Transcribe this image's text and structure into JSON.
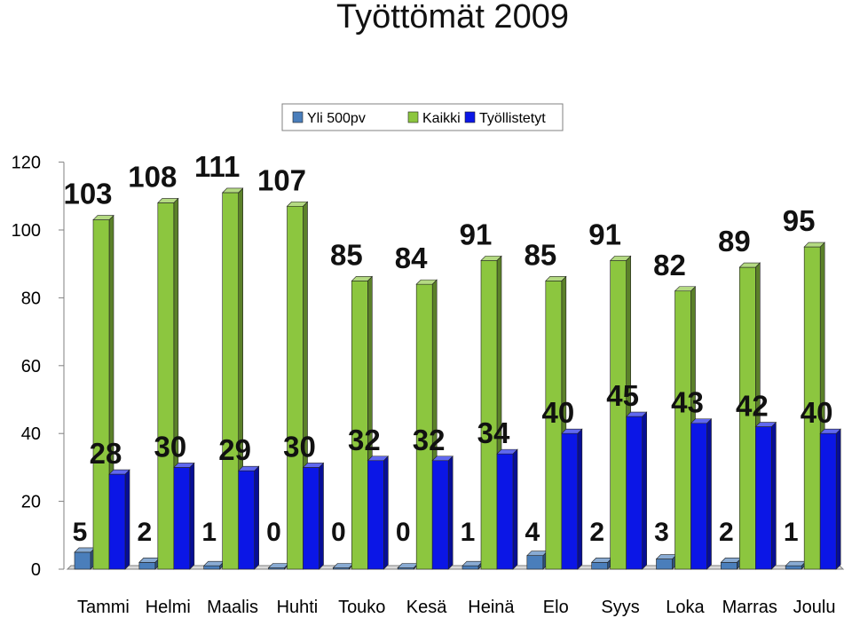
{
  "chart_data": {
    "type": "bar",
    "title": "Työttömät 2009",
    "categories": [
      "Tammi",
      "Helmi",
      "Maalis",
      "Huhti",
      "Touko",
      "Kesä",
      "Heinä",
      "Elo",
      "Syys",
      "Loka",
      "Marras",
      "Joulu"
    ],
    "series": [
      {
        "name": "Yli 500pv",
        "color": "#4a7ebb",
        "values": [
          5,
          2,
          1,
          0,
          0,
          0,
          1,
          4,
          2,
          3,
          2,
          1
        ]
      },
      {
        "name": "Kaikki",
        "color": "#8cc63f",
        "values": [
          103,
          108,
          111,
          107,
          85,
          84,
          91,
          85,
          91,
          82,
          89,
          95
        ]
      },
      {
        "name": "Työllistetyt",
        "color": "#0b16e6",
        "values": [
          28,
          30,
          29,
          30,
          32,
          32,
          34,
          40,
          45,
          43,
          42,
          40
        ]
      }
    ],
    "ylim": [
      0,
      120
    ],
    "yticks": [
      "0",
      "20",
      "40",
      "60",
      "80",
      "100",
      "120"
    ],
    "xlabel": "",
    "ylabel": "",
    "grid": false,
    "legend_position": "top-right",
    "style": "3d-bars"
  }
}
